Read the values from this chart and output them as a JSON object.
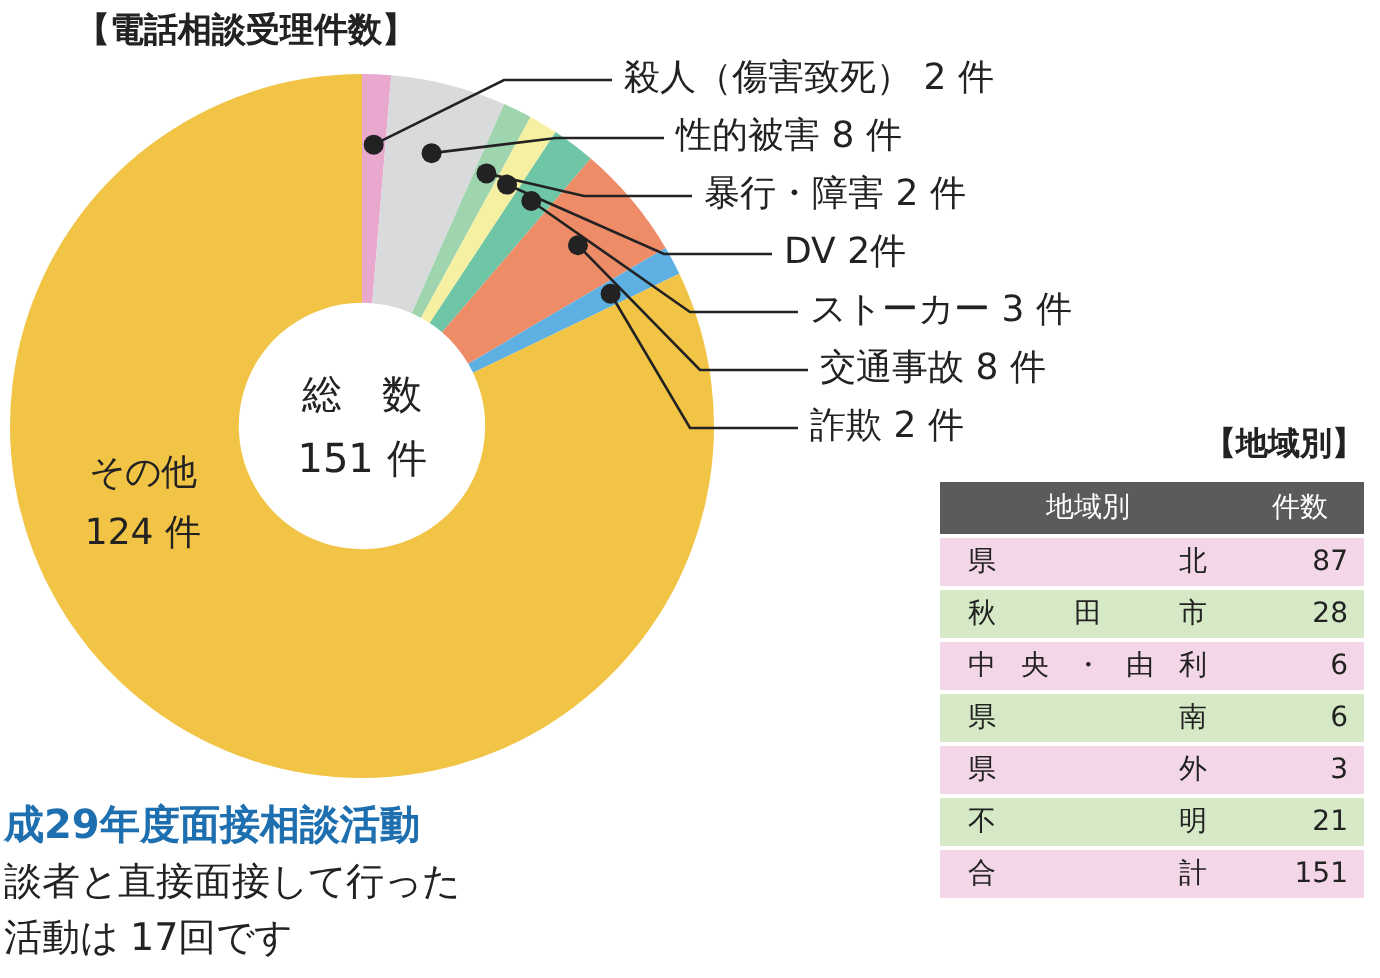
{
  "chart_data": [
    {
      "type": "donut",
      "title": "【電話相談受理件数】",
      "categories": [
        "殺人（傷害致死）",
        "性的被害",
        "暴行・障害",
        "DV",
        "ストーカー",
        "交通事故",
        "詐欺",
        "その他"
      ],
      "values": [
        2,
        8,
        2,
        2,
        3,
        8,
        2,
        124
      ],
      "value_labels": [
        "2 件",
        "8 件",
        "2 件",
        "2件",
        "3 件",
        "8 件",
        "2 件",
        "124 件"
      ],
      "colors": [
        "#e9a9cf",
        "#d9dadb",
        "#9ed5ae",
        "#f6f0a2",
        "#6fc6a6",
        "#ee8c68",
        "#5eb0e2",
        "#f2c446"
      ],
      "annotations": [
        "総　数",
        "151 件",
        "成29年度面接相談活動",
        "談者と直接面接して行った",
        "活動は 17回です"
      ],
      "legend": false
    },
    {
      "type": "other",
      "title": "【地域別】",
      "xlabel": "地域別",
      "ylabel": "件数",
      "categories": [
        "県北",
        "秋田市",
        "中央・由利",
        "県南",
        "県外",
        "不明",
        "合計"
      ],
      "values": [
        87,
        28,
        6,
        6,
        3,
        21,
        151
      ],
      "data_labels": true
    }
  ]
}
